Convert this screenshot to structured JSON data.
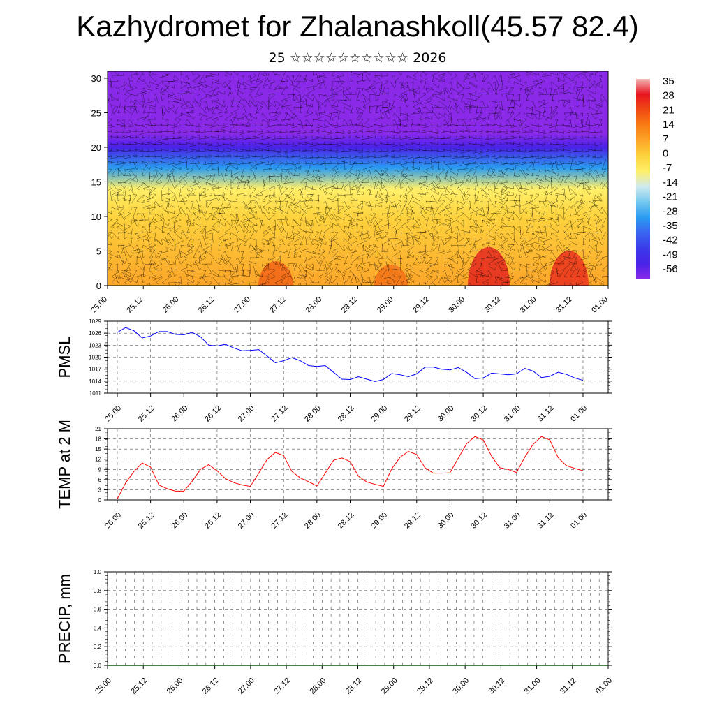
{
  "title": "Kazhydromet for Zhalanashkoll(45.57 82.4)",
  "subtitle": "25 ☆☆☆☆☆☆☆☆☆☆ 2026",
  "colors": {
    "pmsl_line": "#0000ff",
    "temp_line": "#ff0000",
    "precip_line": "#006400"
  },
  "chart_data": [
    {
      "type": "heatmap",
      "x_ticks": [
        "25.00",
        "25.12",
        "26.00",
        "26.12",
        "27.00",
        "27.12",
        "28.00",
        "28.12",
        "29.00",
        "29.12",
        "30.00",
        "30.12",
        "31.00",
        "31.12",
        "01.00"
      ],
      "y_ticks": [
        0,
        5,
        10,
        15,
        20,
        25,
        30
      ],
      "ylim": [
        0,
        31
      ],
      "colorbar": {
        "labels": [
          "35",
          "28",
          "21",
          "14",
          "7",
          "0",
          "-7",
          "-14",
          "-21",
          "-28",
          "-35",
          "-42",
          "-49",
          "-56"
        ],
        "colors": [
          "#f4b6b6",
          "#e8141e",
          "#f04a14",
          "#f87c14",
          "#fca528",
          "#fdd33e",
          "#fff06a",
          "#cfeaf0",
          "#74c8f0",
          "#2a9cf0",
          "#3a64f0",
          "#3a3aea",
          "#4a22e8",
          "#8a2ae8"
        ]
      },
      "layers": [
        {
          "z": 0,
          "temp": 10
        },
        {
          "z": 10,
          "temp": 2
        },
        {
          "z": 14,
          "temp": -9
        },
        {
          "z": 17,
          "temp": -28
        },
        {
          "z": 20,
          "temp": -48
        },
        {
          "z": 22,
          "temp": -60
        },
        {
          "z": 31,
          "temp": -58
        }
      ]
    },
    {
      "type": "line",
      "ylabel": "PMSL",
      "x_ticks": [
        "25.00",
        "25.12",
        "26.00",
        "26.12",
        "27.00",
        "27.12",
        "28.00",
        "28.12",
        "29.00",
        "29.12",
        "30.00",
        "30.12",
        "31.00",
        "31.12",
        "01.00"
      ],
      "y_ticks": [
        1011,
        1014,
        1017,
        1020,
        1023,
        1026,
        1029
      ],
      "ylim": [
        1011,
        1029
      ],
      "series": [
        {
          "values": [
            1026.2,
            1027.4,
            1026.6,
            1024.8,
            1025.3,
            1026.4,
            1026.4,
            1025.7,
            1025.6,
            1026.2,
            1025.1,
            1023.0,
            1022.8,
            1023.2,
            1022.3,
            1021.6,
            1021.7,
            1021.9,
            1020.3,
            1018.6,
            1019.1,
            1019.9,
            1019.1,
            1017.9,
            1017.7,
            1017.9,
            1016.2,
            1014.5,
            1014.4,
            1015.1,
            1014.5,
            1013.9,
            1014.4,
            1015.9,
            1015.6,
            1015.1,
            1015.8,
            1017.5,
            1017.5,
            1017.0,
            1016.8,
            1017.4,
            1016.2,
            1014.6,
            1014.8,
            1016.0,
            1015.8,
            1015.6,
            1015.8,
            1017.2,
            1016.5,
            1014.9,
            1015.2,
            1016.2,
            1015.7,
            1014.8,
            1014.2
          ]
        }
      ]
    },
    {
      "type": "line",
      "ylabel": "TEMP at 2 M",
      "x_ticks": [
        "25.00",
        "25.12",
        "26.00",
        "26.12",
        "27.00",
        "27.12",
        "28.00",
        "28.12",
        "29.00",
        "29.12",
        "30.00",
        "30.12",
        "31.00",
        "31.12",
        "01.00"
      ],
      "y_ticks": [
        0,
        3,
        6,
        9,
        12,
        15,
        18,
        21
      ],
      "ylim": [
        0,
        21
      ],
      "series": [
        {
          "values": [
            0.3,
            5.0,
            8.4,
            10.9,
            9.7,
            4.4,
            3.3,
            2.6,
            2.6,
            5.5,
            9.0,
            10.4,
            8.6,
            6.3,
            5.1,
            4.4,
            4.0,
            7.9,
            11.9,
            14.0,
            13.1,
            8.4,
            6.5,
            5.4,
            4.1,
            7.9,
            11.7,
            12.4,
            11.3,
            7.0,
            5.3,
            4.6,
            4.0,
            9.2,
            12.6,
            14.3,
            13.4,
            9.5,
            7.9,
            7.9,
            8.0,
            12.3,
            16.6,
            18.7,
            17.7,
            12.9,
            9.5,
            9.0,
            8.1,
            12.6,
            16.4,
            18.7,
            17.7,
            12.5,
            10.1,
            9.3,
            8.6
          ]
        }
      ]
    },
    {
      "type": "line",
      "ylabel": "PRECIP, mm",
      "x_ticks": [
        "25.00",
        "25.12",
        "26.00",
        "26.12",
        "27.00",
        "27.12",
        "28.00",
        "28.12",
        "29.00",
        "29.12",
        "30.00",
        "30.12",
        "31.00",
        "31.12",
        "01.00"
      ],
      "y_ticks": [
        "0.0",
        "0.2",
        "0.4",
        "0.6",
        "0.8",
        "1.0"
      ],
      "ylim": [
        0,
        1
      ],
      "series": [
        {
          "values": [
            0,
            0,
            0,
            0,
            0,
            0,
            0,
            0,
            0,
            0,
            0,
            0,
            0,
            0,
            0
          ]
        }
      ]
    }
  ]
}
